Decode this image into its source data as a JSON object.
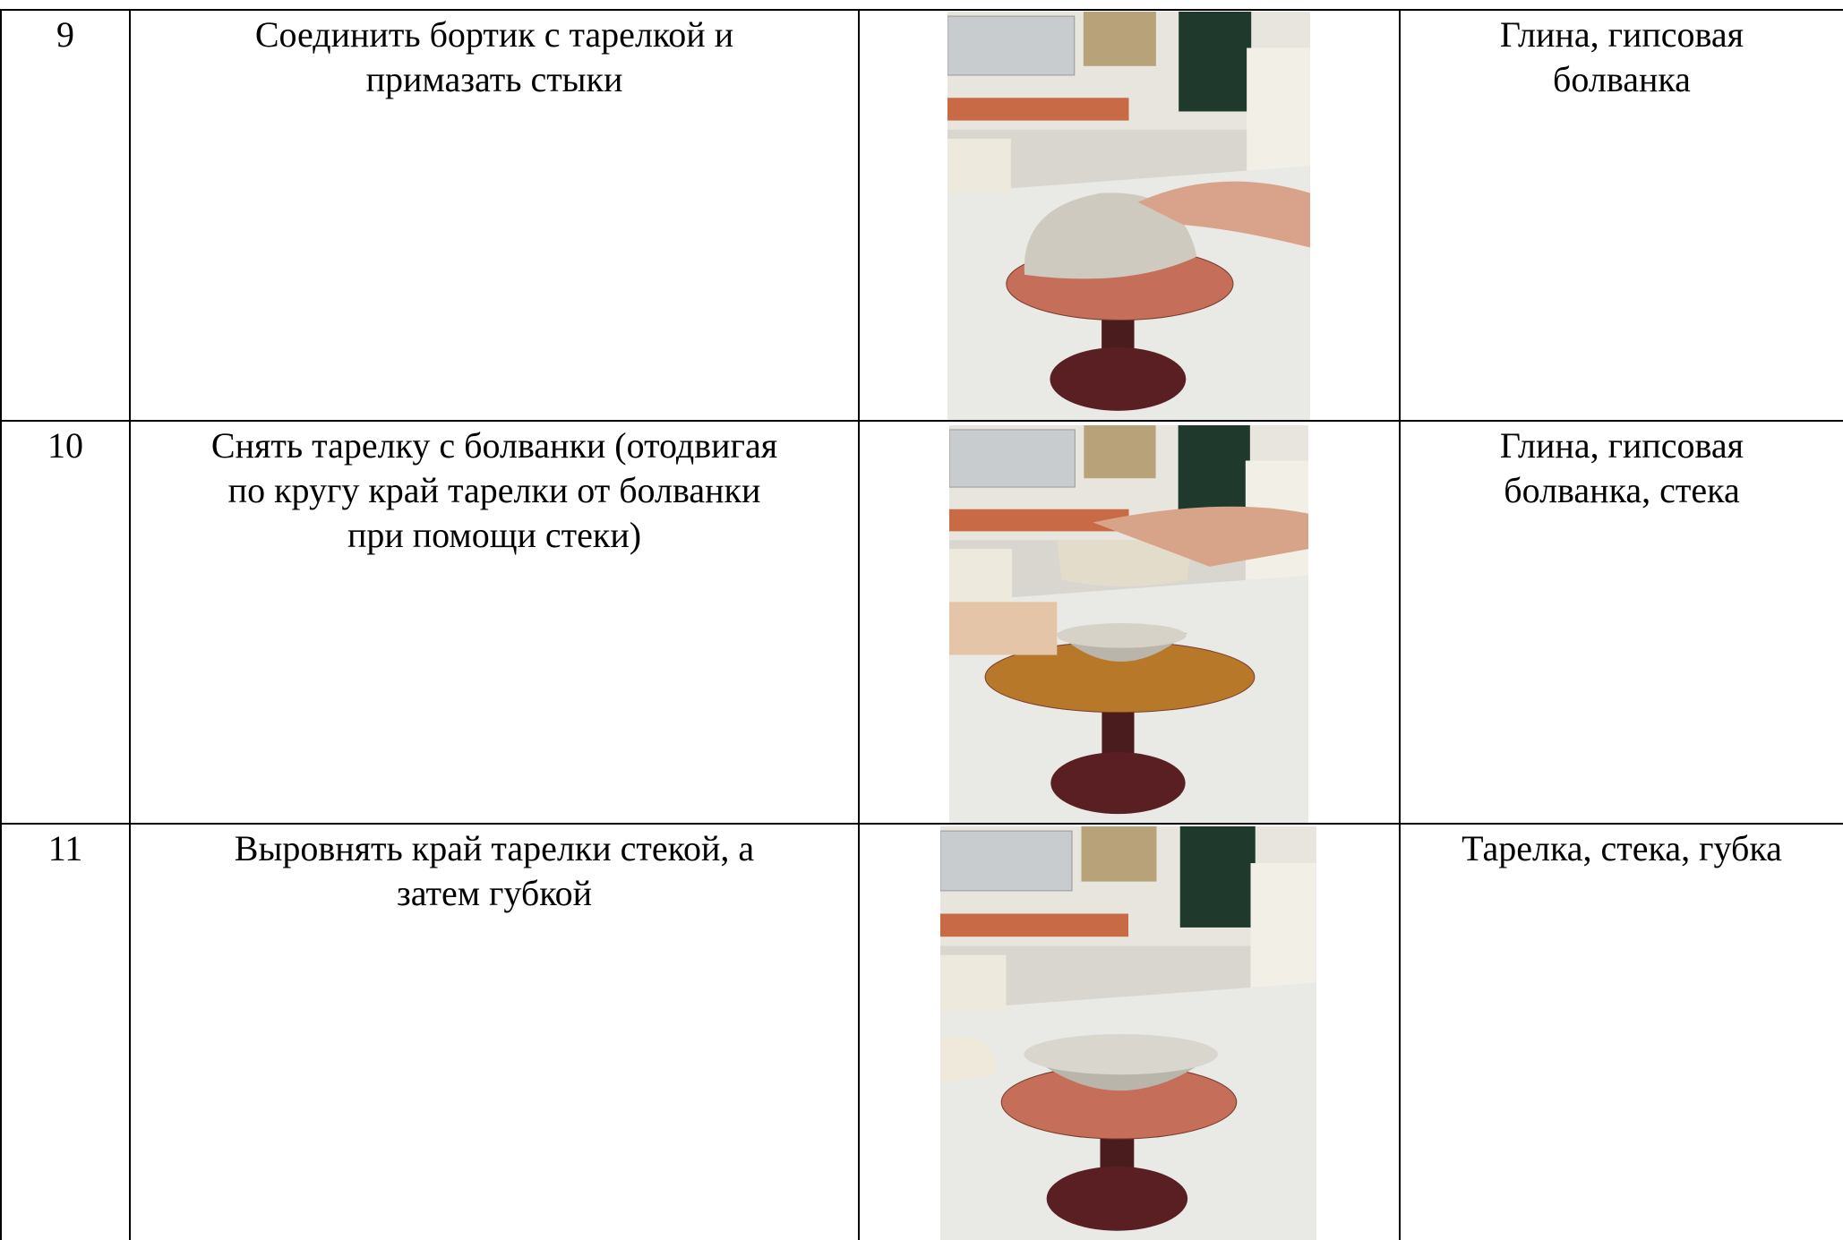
{
  "table": {
    "rows": [
      {
        "number": "9",
        "step": [
          "Соединить бортик с тарелкой и",
          "примазать стыки"
        ],
        "materials": [
          "Глина, гипсовая",
          "болванка"
        ]
      },
      {
        "number": "10",
        "step": [
          "Снять тарелку с болванки (отодвигая",
          "по кругу край тарелки от болванки",
          "при помощи стеки)"
        ],
        "materials": [
          "Глина, гипсовая",
          "болванка, стека"
        ]
      },
      {
        "number": "11",
        "step": [
          "Выровнять край тарелки стекой, а",
          "затем губкой"
        ],
        "materials": [
          "Тарелка, стека, губка"
        ]
      }
    ]
  }
}
